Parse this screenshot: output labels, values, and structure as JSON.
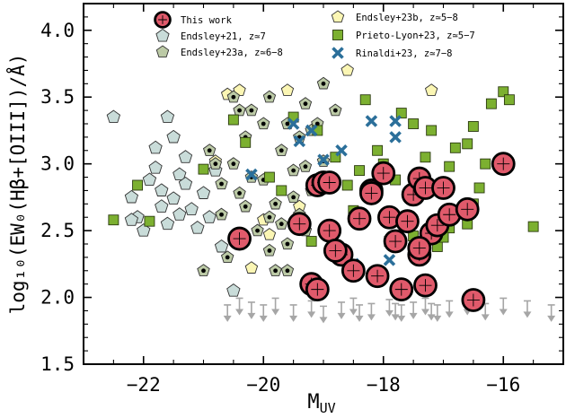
{
  "chart_data": {
    "type": "scatter",
    "xlabel": "M",
    "xlabel_sub": "UV",
    "ylabel": "log₁₀(EW₀(Hβ+[OIII])/Å)",
    "xlim": [
      -23,
      -15
    ],
    "ylim": [
      1.5,
      4.2
    ],
    "xticks": [
      -22,
      -20,
      -18,
      -16
    ],
    "xtick_labels": [
      "−22",
      "−20",
      "−18",
      "−16"
    ],
    "yticks": [
      1.5,
      2.0,
      2.5,
      3.0,
      3.5,
      4.0
    ],
    "ytick_labels": [
      "1.5",
      "2.0",
      "2.5",
      "3.0",
      "3.5",
      "4.0"
    ],
    "grid": false,
    "legend_position": "top",
    "colors": {
      "this_work": "#e05a6b",
      "endsley21": "#c9dcd9",
      "endsley23a": "#bccaa6",
      "endsley23b": "#fbf6b4",
      "prieto_lyon": "#7cb030",
      "rinaldi": "#2b6f9a",
      "upper_limits": "#a6a6a6"
    },
    "series": [
      {
        "name": "This work",
        "marker": "circle-cross",
        "points": [
          [
            -20.4,
            2.44
          ],
          [
            -19.4,
            2.55
          ],
          [
            -19.1,
            2.84
          ],
          [
            -19.0,
            2.86
          ],
          [
            -18.9,
            2.86
          ],
          [
            -19.2,
            2.1
          ],
          [
            -19.1,
            2.06
          ],
          [
            -18.9,
            2.5
          ],
          [
            -18.7,
            2.32
          ],
          [
            -18.5,
            2.2
          ],
          [
            -18.4,
            2.59
          ],
          [
            -18.2,
            2.8
          ],
          [
            -18.1,
            2.16
          ],
          [
            -18.0,
            2.93
          ],
          [
            -17.9,
            2.6
          ],
          [
            -17.8,
            2.42
          ],
          [
            -17.6,
            2.57
          ],
          [
            -17.5,
            2.77
          ],
          [
            -17.4,
            2.89
          ],
          [
            -17.4,
            2.32
          ],
          [
            -17.3,
            2.82
          ],
          [
            -17.2,
            2.48
          ],
          [
            -17.1,
            2.54
          ],
          [
            -17.0,
            2.82
          ],
          [
            -16.9,
            2.62
          ],
          [
            -16.6,
            2.66
          ],
          [
            -16.5,
            1.98
          ],
          [
            -16.0,
            3.0
          ],
          [
            -17.7,
            2.06
          ],
          [
            -17.3,
            2.09
          ],
          [
            -18.8,
            2.35
          ],
          [
            -17.4,
            2.37
          ],
          [
            -18.2,
            2.78
          ]
        ]
      },
      {
        "name": "Endsley+21, z≃7",
        "marker": "pentagon",
        "points": [
          [
            -22.5,
            3.35
          ],
          [
            -22.2,
            2.75
          ],
          [
            -22.1,
            2.6
          ],
          [
            -21.9,
            2.88
          ],
          [
            -21.8,
            2.97
          ],
          [
            -21.7,
            2.8
          ],
          [
            -21.6,
            2.55
          ],
          [
            -21.5,
            2.74
          ],
          [
            -21.4,
            2.92
          ],
          [
            -21.3,
            3.05
          ],
          [
            -21.2,
            2.66
          ],
          [
            -21.1,
            2.52
          ],
          [
            -21.0,
            2.78
          ],
          [
            -20.9,
            2.6
          ],
          [
            -20.7,
            2.38
          ],
          [
            -20.5,
            2.05
          ],
          [
            -21.8,
            3.12
          ],
          [
            -21.5,
            3.2
          ],
          [
            -22.0,
            2.5
          ],
          [
            -21.7,
            2.68
          ],
          [
            -21.3,
            2.85
          ],
          [
            -20.8,
            2.95
          ],
          [
            -21.6,
            3.35
          ],
          [
            -22.2,
            2.58
          ],
          [
            -21.4,
            2.62
          ]
        ]
      },
      {
        "name": "Endsley+23a, z≃6−8",
        "marker": "pentagon-dot",
        "points": [
          [
            -21.0,
            2.2
          ],
          [
            -20.8,
            3.0
          ],
          [
            -20.7,
            2.85
          ],
          [
            -20.5,
            3.5
          ],
          [
            -20.4,
            3.4
          ],
          [
            -20.3,
            3.2
          ],
          [
            -20.2,
            2.9
          ],
          [
            -20.0,
            3.3
          ],
          [
            -19.9,
            2.6
          ],
          [
            -19.8,
            2.7
          ],
          [
            -19.7,
            3.1
          ],
          [
            -19.6,
            2.4
          ],
          [
            -19.5,
            2.95
          ],
          [
            -19.4,
            3.2
          ],
          [
            -19.3,
            2.5
          ],
          [
            -19.2,
            2.8
          ],
          [
            -19.1,
            3.3
          ],
          [
            -19.0,
            3.6
          ],
          [
            -18.8,
            3.4
          ],
          [
            -20.6,
            2.3
          ],
          [
            -20.1,
            2.5
          ],
          [
            -19.9,
            3.5
          ],
          [
            -19.7,
            2.55
          ],
          [
            -19.6,
            2.2
          ],
          [
            -20.3,
            2.68
          ],
          [
            -20.9,
            3.1
          ],
          [
            -19.3,
            2.98
          ],
          [
            -19.5,
            2.75
          ],
          [
            -20.0,
            2.88
          ],
          [
            -19.8,
            2.2
          ],
          [
            -20.4,
            2.78
          ],
          [
            -19.0,
            3.02
          ],
          [
            -19.6,
            3.3
          ],
          [
            -20.2,
            3.4
          ],
          [
            -19.4,
            2.62
          ],
          [
            -19.2,
            3.25
          ],
          [
            -20.7,
            2.62
          ],
          [
            -19.9,
            2.35
          ],
          [
            -20.5,
            3.0
          ],
          [
            -19.3,
            3.45
          ]
        ]
      },
      {
        "name": "Endsley+23b, z≃5−8",
        "marker": "pentagon",
        "points": [
          [
            -20.6,
            3.52
          ],
          [
            -20.4,
            3.55
          ],
          [
            -20.0,
            2.58
          ],
          [
            -19.6,
            3.55
          ],
          [
            -18.6,
            3.7
          ],
          [
            -17.2,
            3.55
          ],
          [
            -20.8,
            3.02
          ],
          [
            -19.9,
            2.47
          ],
          [
            -20.2,
            2.22
          ],
          [
            -19.4,
            2.68
          ]
        ]
      },
      {
        "name": "Prieto-Lyon+23, z≃5−7",
        "marker": "square",
        "points": [
          [
            -22.5,
            2.58
          ],
          [
            -22.1,
            2.84
          ],
          [
            -21.9,
            2.57
          ],
          [
            -21.0,
            2.96
          ],
          [
            -20.5,
            3.33
          ],
          [
            -20.3,
            3.16
          ],
          [
            -19.9,
            2.9
          ],
          [
            -19.7,
            2.8
          ],
          [
            -19.5,
            3.35
          ],
          [
            -19.1,
            3.25
          ],
          [
            -18.8,
            3.05
          ],
          [
            -18.5,
            2.65
          ],
          [
            -18.3,
            3.48
          ],
          [
            -18.1,
            3.1
          ],
          [
            -17.9,
            2.42
          ],
          [
            -17.7,
            3.38
          ],
          [
            -17.5,
            3.3
          ],
          [
            -17.3,
            3.05
          ],
          [
            -17.2,
            3.25
          ],
          [
            -17.1,
            2.38
          ],
          [
            -16.9,
            2.98
          ],
          [
            -16.8,
            3.12
          ],
          [
            -16.6,
            3.15
          ],
          [
            -16.5,
            2.7
          ],
          [
            -16.4,
            2.82
          ],
          [
            -16.2,
            3.45
          ],
          [
            -16.0,
            3.54
          ],
          [
            -15.9,
            3.48
          ],
          [
            -15.5,
            2.53
          ],
          [
            -18.6,
            2.84
          ],
          [
            -19.2,
            2.42
          ],
          [
            -16.9,
            2.52
          ],
          [
            -16.6,
            2.55
          ],
          [
            -17.8,
            2.88
          ],
          [
            -18.0,
            3.0
          ],
          [
            -16.3,
            3.0
          ],
          [
            -16.5,
            3.28
          ],
          [
            -17.0,
            2.45
          ],
          [
            -18.4,
            2.95
          ],
          [
            -17.5,
            2.46
          ]
        ]
      },
      {
        "name": "Rinaldi+23, z≃7−8",
        "marker": "x",
        "points": [
          [
            -20.2,
            2.92
          ],
          [
            -19.5,
            3.3
          ],
          [
            -19.4,
            3.17
          ],
          [
            -19.2,
            3.25
          ],
          [
            -19.0,
            3.03
          ],
          [
            -18.7,
            3.1
          ],
          [
            -18.5,
            2.25
          ],
          [
            -18.2,
            3.32
          ],
          [
            -17.8,
            3.32
          ],
          [
            -17.8,
            3.2
          ],
          [
            -17.9,
            2.28
          ]
        ]
      },
      {
        "name": "",
        "marker": "upper-limit",
        "points": [
          [
            -20.6,
            1.85
          ],
          [
            -20.4,
            1.9
          ],
          [
            -20.2,
            1.87
          ],
          [
            -20.0,
            1.85
          ],
          [
            -19.8,
            1.9
          ],
          [
            -19.5,
            1.85
          ],
          [
            -19.2,
            1.88
          ],
          [
            -18.7,
            1.87
          ],
          [
            -18.5,
            1.9
          ],
          [
            -18.2,
            1.86
          ],
          [
            -17.9,
            1.89
          ],
          [
            -17.7,
            1.85
          ],
          [
            -17.5,
            1.87
          ],
          [
            -17.3,
            1.9
          ],
          [
            -17.1,
            1.85
          ],
          [
            -16.9,
            1.88
          ],
          [
            -16.3,
            1.86
          ],
          [
            -16.0,
            1.9
          ],
          [
            -15.6,
            1.88
          ],
          [
            -15.2,
            1.85
          ],
          [
            -19.0,
            1.84
          ],
          [
            -18.4,
            1.85
          ],
          [
            -17.8,
            1.86
          ],
          [
            -17.2,
            1.86
          ],
          [
            -16.6,
            1.9
          ]
        ]
      }
    ]
  }
}
